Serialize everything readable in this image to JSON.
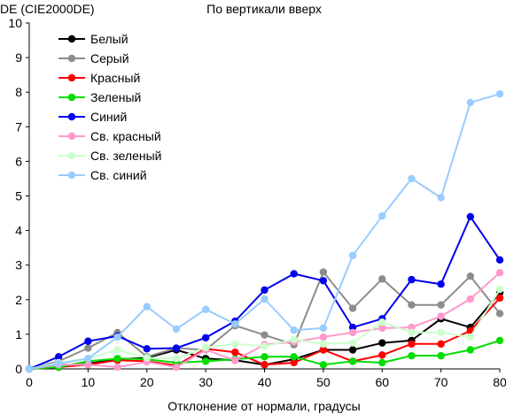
{
  "chart_data": {
    "type": "line",
    "title": "По вертикали вверх",
    "ylabel": "DE (CIE2000DE)",
    "xlabel": "Отклонение от нормали, градусы",
    "xlim": [
      0,
      80
    ],
    "ylim": [
      0,
      10
    ],
    "x_ticks": [
      "0",
      "10",
      "20",
      "30",
      "40",
      "50",
      "60",
      "70",
      "80"
    ],
    "y_ticks": [
      "0",
      "1",
      "2",
      "3",
      "4",
      "5",
      "6",
      "7",
      "8",
      "9",
      "10"
    ],
    "grid": false,
    "legend_position": "upper-left",
    "x": [
      0,
      5,
      10,
      15,
      20,
      25,
      30,
      35,
      40,
      45,
      50,
      55,
      60,
      65,
      70,
      75,
      80
    ],
    "series": [
      {
        "name": "Белый",
        "color": "#000000",
        "values": [
          0,
          0.05,
          0.15,
          0.28,
          0.32,
          0.55,
          0.3,
          0.25,
          0.12,
          0.28,
          0.55,
          0.55,
          0.75,
          0.82,
          1.45,
          1.2,
          2.2
        ]
      },
      {
        "name": "Серый",
        "color": "#8c8c8c",
        "values": [
          0,
          0.22,
          0.6,
          1.05,
          0.35,
          0.6,
          0.55,
          1.25,
          0.98,
          0.7,
          2.8,
          1.75,
          2.6,
          1.85,
          1.85,
          2.68,
          1.6
        ]
      },
      {
        "name": "Красный",
        "color": "#ff0000",
        "values": [
          0,
          0.05,
          0.12,
          0.25,
          0.22,
          0.1,
          0.58,
          0.48,
          0.12,
          0.18,
          0.55,
          0.22,
          0.4,
          0.72,
          0.72,
          1.1,
          2.05
        ]
      },
      {
        "name": "Зеленый",
        "color": "#00dd00",
        "values": [
          0,
          0.05,
          0.22,
          0.3,
          0.28,
          0.18,
          0.22,
          0.28,
          0.35,
          0.35,
          0.12,
          0.22,
          0.18,
          0.38,
          0.38,
          0.55,
          0.82
        ]
      },
      {
        "name": "Синий",
        "color": "#0000ee",
        "values": [
          0,
          0.35,
          0.8,
          0.95,
          0.58,
          0.6,
          0.9,
          1.38,
          2.28,
          2.75,
          2.55,
          1.2,
          1.45,
          2.58,
          2.45,
          4.4,
          3.15
        ]
      },
      {
        "name": "Св. красный",
        "color": "#ff99cc",
        "values": [
          0,
          0.12,
          0.12,
          0.05,
          0.2,
          0.05,
          0.55,
          0.25,
          0.7,
          0.78,
          0.92,
          1.05,
          1.18,
          1.2,
          1.52,
          2.02,
          2.78
        ]
      },
      {
        "name": "Св. зеленый",
        "color": "#ccffcc",
        "values": [
          0,
          0.18,
          0.3,
          0.55,
          0.32,
          0.3,
          0.62,
          0.72,
          0.65,
          0.85,
          0.72,
          0.75,
          1.35,
          1.05,
          1.05,
          0.92,
          2.3
        ]
      },
      {
        "name": "Св. синий",
        "color": "#99ccff",
        "values": [
          0,
          0.15,
          0.3,
          0.92,
          1.8,
          1.15,
          1.72,
          1.3,
          2.02,
          1.12,
          1.18,
          3.28,
          4.42,
          5.5,
          4.95,
          7.7,
          7.95
        ]
      }
    ]
  }
}
